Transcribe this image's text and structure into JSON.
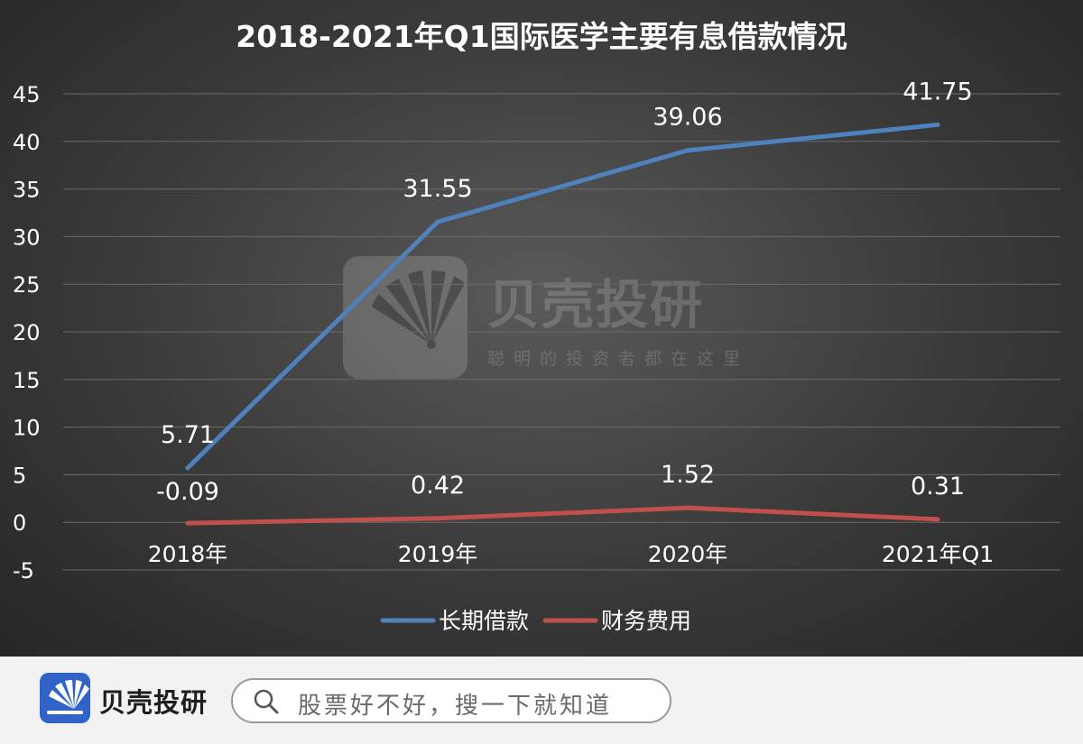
{
  "chart_data": {
    "type": "line",
    "title": "2018-2021年Q1国际医学主要有息借款情况",
    "categories": [
      "2018年",
      "2019年",
      "2020年",
      "2021年Q1"
    ],
    "series": [
      {
        "name": "长期借款",
        "values": [
          5.71,
          31.55,
          39.06,
          41.75
        ],
        "labels": [
          "5.71",
          "31.55",
          "39.06",
          "41.75"
        ],
        "color": "#4f81bd"
      },
      {
        "name": "财务费用",
        "values": [
          -0.09,
          0.42,
          1.52,
          0.31
        ],
        "labels": [
          "-0.09",
          "0.42",
          "1.52",
          "0.31"
        ],
        "color": "#c0504d"
      }
    ],
    "ylim": [
      -5,
      45
    ],
    "yticks": [
      45,
      40,
      35,
      30,
      25,
      20,
      15,
      10,
      5,
      0,
      -5
    ],
    "grid": true,
    "legend": "bottom"
  },
  "watermark": {
    "name": "贝壳投研",
    "tagline": "聪明的投资者都在这里"
  },
  "footer": {
    "brand_name": "贝壳投研",
    "search_placeholder": "股票好不好，搜一下就知道"
  },
  "colors": {
    "background": "#333333",
    "brand": "#2f63c8"
  }
}
